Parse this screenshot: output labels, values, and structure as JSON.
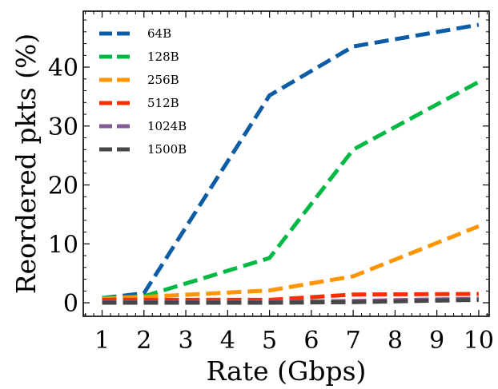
{
  "chart_data": {
    "type": "line",
    "xlabel": "Rate (Gbps)",
    "ylabel": "Reordered pkts (%)",
    "xlim": [
      0.55,
      10.25
    ],
    "ylim": [
      -2.3,
      49.5
    ],
    "x_ticks": [
      1,
      2,
      3,
      4,
      5,
      6,
      7,
      8,
      9,
      10
    ],
    "y_ticks": [
      0,
      10,
      20,
      30,
      40
    ],
    "legend_position": "top-left",
    "grid": false,
    "line_style": "dashed",
    "series": [
      {
        "name": "64B",
        "color": "#0c5da5",
        "x": [
          1,
          2,
          5,
          7,
          10
        ],
        "y": [
          0.8,
          1.6,
          35.2,
          43.5,
          47.2
        ]
      },
      {
        "name": "128B",
        "color": "#00b945",
        "x": [
          1,
          2,
          5,
          7,
          10
        ],
        "y": [
          0.8,
          1.1,
          7.6,
          26.0,
          37.5
        ]
      },
      {
        "name": "256B",
        "color": "#ff9500",
        "x": [
          1,
          2,
          5,
          7,
          10
        ],
        "y": [
          0.7,
          1.0,
          2.1,
          4.5,
          13.0
        ]
      },
      {
        "name": "512B",
        "color": "#ff2c00",
        "x": [
          1,
          2,
          5,
          7,
          10
        ],
        "y": [
          0.5,
          0.5,
          0.5,
          1.4,
          1.5
        ]
      },
      {
        "name": "1024B",
        "color": "#845b97",
        "x": [
          1,
          2,
          5,
          7,
          10
        ],
        "y": [
          0.1,
          0.1,
          0.2,
          0.3,
          0.7
        ]
      },
      {
        "name": "1500B",
        "color": "#474747",
        "x": [
          1,
          2,
          5,
          7,
          10
        ],
        "y": [
          0.0,
          0.0,
          0.0,
          0.1,
          0.5
        ]
      }
    ]
  }
}
